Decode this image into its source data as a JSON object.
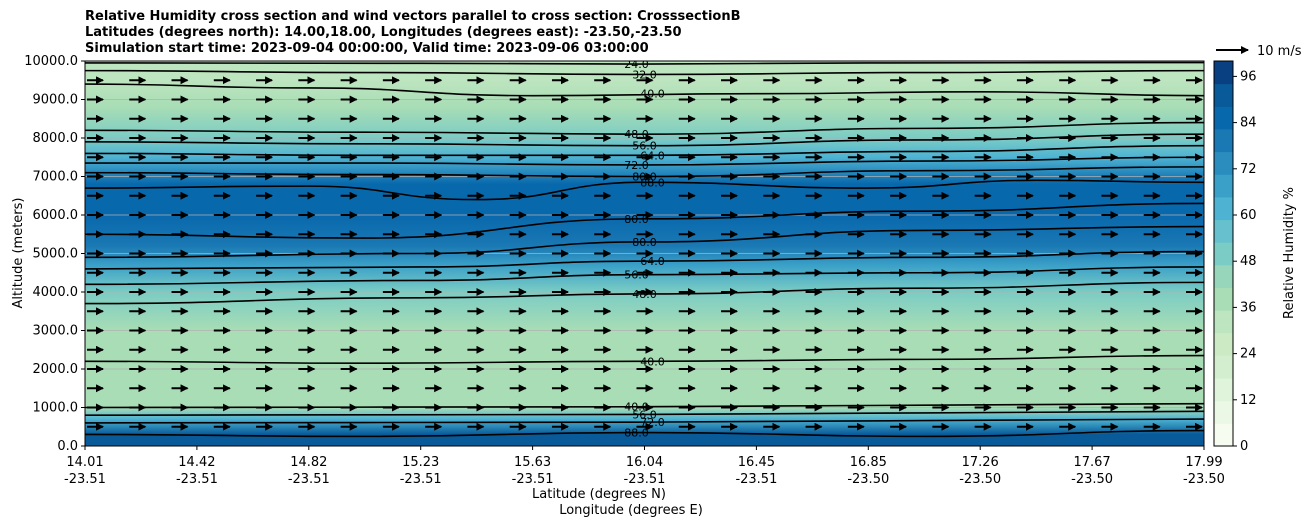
{
  "title_lines": [
    "Relative Humidity cross section and wind vectors parallel to cross section: CrosssectionB",
    "Latitudes (degrees north): 14.00,18.00, Longitudes (degrees east): -23.50,-23.50",
    "Simulation start time: 2023-09-04 00:00:00, Valid time: 2023-09-06 03:00:00"
  ],
  "chart_data": {
    "type": "heatmap",
    "description_free": true,
    "ylabel": "Altitude (meters)",
    "xlabel_lines": [
      "Latitude (degrees N)",
      "Longitude (degrees E)"
    ],
    "ylim": [
      0,
      10000
    ],
    "y_ticks": [
      0,
      1000,
      2000,
      3000,
      4000,
      5000,
      6000,
      7000,
      8000,
      9000,
      10000
    ],
    "y_tick_labels": [
      "0.0",
      "1000.0",
      "2000.0",
      "3000.0",
      "4000.0",
      "5000.0",
      "6000.0",
      "7000.0",
      "8000.0",
      "9000.0",
      "10000.0"
    ],
    "x_ticks": [
      {
        "lat": "14.01",
        "lon": "-23.51"
      },
      {
        "lat": "14.42",
        "lon": "-23.51"
      },
      {
        "lat": "14.82",
        "lon": "-23.51"
      },
      {
        "lat": "15.23",
        "lon": "-23.51"
      },
      {
        "lat": "15.63",
        "lon": "-23.51"
      },
      {
        "lat": "16.04",
        "lon": "-23.51"
      },
      {
        "lat": "16.45",
        "lon": "-23.51"
      },
      {
        "lat": "16.85",
        "lon": "-23.50"
      },
      {
        "lat": "17.26",
        "lon": "-23.50"
      },
      {
        "lat": "17.67",
        "lon": "-23.50"
      },
      {
        "lat": "17.99",
        "lon": "-23.50"
      }
    ],
    "grid": "horizontal",
    "colorbar": {
      "label": "Relative Humidity %",
      "ticks": [
        0,
        12,
        24,
        36,
        48,
        60,
        72,
        84,
        96
      ],
      "range": [
        0,
        100
      ],
      "colors": [
        "#f7fcf0",
        "#ecf8e6",
        "#e0f3db",
        "#d3eece",
        "#ccebc5",
        "#bde5bf",
        "#a8ddb5",
        "#97d6bb",
        "#7bccc4",
        "#66c0cd",
        "#4eb3d3",
        "#3aa0c8",
        "#2b8cbe",
        "#1a78b3",
        "#0868ac",
        "#085a98",
        "#084081"
      ]
    },
    "rh_profile": [
      {
        "alt": 0,
        "rh": 92
      },
      {
        "alt": 300,
        "rh": 90
      },
      {
        "alt": 700,
        "rh": 62
      },
      {
        "alt": 1000,
        "rh": 40
      },
      {
        "alt": 2000,
        "rh": 38
      },
      {
        "alt": 3000,
        "rh": 40
      },
      {
        "alt": 4000,
        "rh": 50
      },
      {
        "alt": 4700,
        "rh": 70
      },
      {
        "alt": 5200,
        "rh": 80
      },
      {
        "alt": 6000,
        "rh": 86
      },
      {
        "alt": 6800,
        "rh": 85
      },
      {
        "alt": 7500,
        "rh": 62
      },
      {
        "alt": 8000,
        "rh": 50
      },
      {
        "alt": 8800,
        "rh": 40
      },
      {
        "alt": 9500,
        "rh": 34
      },
      {
        "alt": 10000,
        "rh": 33
      }
    ],
    "contours": [
      {
        "label": "24.0",
        "pts": [
          [
            0.0,
            9950
          ],
          [
            0.3,
            9940
          ],
          [
            0.5,
            9920
          ],
          [
            0.7,
            9950
          ],
          [
            1.0,
            9960
          ]
        ]
      },
      {
        "label": "32.0",
        "pts": [
          [
            0.0,
            9750
          ],
          [
            0.25,
            9700
          ],
          [
            0.5,
            9650
          ],
          [
            0.75,
            9700
          ],
          [
            1.0,
            9750
          ]
        ]
      },
      {
        "label": "40.0",
        "pts": [
          [
            0.0,
            9400
          ],
          [
            0.2,
            9300
          ],
          [
            0.4,
            9100
          ],
          [
            0.6,
            9150
          ],
          [
            0.8,
            9200
          ],
          [
            1.0,
            9100
          ]
        ]
      },
      {
        "label": "48.0",
        "pts": [
          [
            0.0,
            8200
          ],
          [
            0.25,
            8150
          ],
          [
            0.5,
            8100
          ],
          [
            0.75,
            8250
          ],
          [
            1.0,
            8400
          ]
        ]
      },
      {
        "label": "56.0",
        "pts": [
          [
            0.0,
            7900
          ],
          [
            0.25,
            7850
          ],
          [
            0.5,
            7800
          ],
          [
            0.75,
            7950
          ],
          [
            1.0,
            8100
          ]
        ]
      },
      {
        "label": "64.0",
        "pts": [
          [
            0.0,
            7600
          ],
          [
            0.25,
            7550
          ],
          [
            0.5,
            7550
          ],
          [
            0.75,
            7650
          ],
          [
            1.0,
            7800
          ]
        ]
      },
      {
        "label": "72.0",
        "pts": [
          [
            0.0,
            7350
          ],
          [
            0.25,
            7350
          ],
          [
            0.5,
            7300
          ],
          [
            0.75,
            7400
          ],
          [
            1.0,
            7500
          ]
        ]
      },
      {
        "label": "80.0",
        "pts": [
          [
            0.0,
            7100
          ],
          [
            0.25,
            7050
          ],
          [
            0.5,
            7000
          ],
          [
            0.75,
            7150
          ],
          [
            1.0,
            7250
          ]
        ]
      },
      {
        "label": "88.0",
        "pts": [
          [
            0.0,
            6700
          ],
          [
            0.2,
            6750
          ],
          [
            0.35,
            6400
          ],
          [
            0.5,
            6850
          ],
          [
            0.7,
            6700
          ],
          [
            0.85,
            6900
          ],
          [
            1.0,
            6850
          ]
        ]
      },
      {
        "label": "80.0",
        "pts": [
          [
            0.0,
            5500
          ],
          [
            0.25,
            5400
          ],
          [
            0.5,
            5900
          ],
          [
            0.75,
            6100
          ],
          [
            1.0,
            6300
          ]
        ]
      },
      {
        "label": "80.0",
        "pts": [
          [
            0.0,
            4900
          ],
          [
            0.3,
            5000
          ],
          [
            0.5,
            5300
          ],
          [
            0.75,
            5600
          ],
          [
            1.0,
            5700
          ]
        ]
      },
      {
        "label": "64.0",
        "pts": [
          [
            0.0,
            4600
          ],
          [
            0.3,
            4650
          ],
          [
            0.5,
            4800
          ],
          [
            0.75,
            4900
          ],
          [
            1.0,
            5050
          ]
        ]
      },
      {
        "label": "56.0",
        "pts": [
          [
            0.0,
            4200
          ],
          [
            0.3,
            4300
          ],
          [
            0.5,
            4450
          ],
          [
            0.75,
            4500
          ],
          [
            1.0,
            4650
          ]
        ]
      },
      {
        "label": "48.0",
        "pts": [
          [
            0.0,
            3700
          ],
          [
            0.3,
            3850
          ],
          [
            0.5,
            3950
          ],
          [
            0.75,
            4100
          ],
          [
            1.0,
            4250
          ]
        ]
      },
      {
        "label": "40.0",
        "pts": [
          [
            0.0,
            2200
          ],
          [
            0.25,
            2150
          ],
          [
            0.5,
            2200
          ],
          [
            0.75,
            2250
          ],
          [
            1.0,
            2350
          ]
        ]
      },
      {
        "label": "40.0",
        "pts": [
          [
            0.0,
            1000
          ],
          [
            0.5,
            1020
          ],
          [
            1.0,
            1100
          ]
        ]
      },
      {
        "label": "56.0",
        "pts": [
          [
            0.0,
            800
          ],
          [
            0.5,
            820
          ],
          [
            1.0,
            900
          ]
        ]
      },
      {
        "label": "72.0",
        "pts": [
          [
            0.0,
            600
          ],
          [
            0.5,
            620
          ],
          [
            1.0,
            700
          ]
        ]
      },
      {
        "label": "88.0",
        "pts": [
          [
            0.0,
            300
          ],
          [
            0.25,
            250
          ],
          [
            0.5,
            350
          ],
          [
            0.75,
            250
          ],
          [
            1.0,
            400
          ]
        ]
      }
    ],
    "wind": {
      "reference_label": "10 m/s",
      "rows_alt": [
        500,
        1000,
        1500,
        2000,
        2500,
        3000,
        3500,
        4000,
        4500,
        5000,
        5500,
        6000,
        6500,
        7000,
        7500,
        8000,
        8500,
        9000,
        9500
      ],
      "columns": 27
    }
  }
}
